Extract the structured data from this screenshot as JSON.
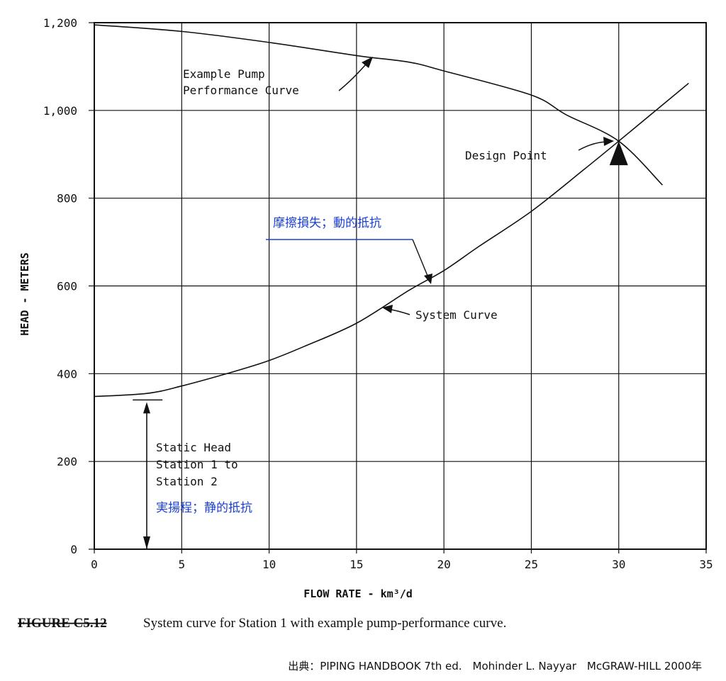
{
  "chart_data": {
    "type": "line",
    "xlabel": "FLOW RATE - km³/d",
    "ylabel": "HEAD - METERS",
    "xlim": [
      0,
      35
    ],
    "ylim": [
      0,
      1200
    ],
    "x_ticks": [
      "0",
      "5",
      "10",
      "15",
      "20",
      "25",
      "30",
      "35"
    ],
    "y_ticks": [
      "0",
      "200",
      "400",
      "600",
      "800",
      "1,000",
      "1,200"
    ],
    "grid": true,
    "series": [
      {
        "name": "Example Pump Performance Curve",
        "x": [
          0,
          5,
          10,
          15,
          18,
          20,
          25,
          27,
          30,
          32.5
        ],
        "y": [
          1195,
          1180,
          1155,
          1125,
          1110,
          1090,
          1035,
          990,
          930,
          830
        ]
      },
      {
        "name": "System Curve",
        "x": [
          0,
          3,
          5,
          8,
          10,
          12,
          15,
          18,
          20,
          22,
          25,
          28,
          30,
          34
        ],
        "y": [
          348,
          355,
          372,
          405,
          430,
          462,
          515,
          590,
          635,
          690,
          770,
          865,
          930,
          1062
        ]
      }
    ],
    "annotations": {
      "pump_curve": [
        "Example Pump",
        "Performance Curve"
      ],
      "system_curve": "System Curve",
      "design_point": "Design Point",
      "friction_loss_jp": "摩擦損失；動的抵抗",
      "static_head": [
        "Static Head",
        "Station 1 to",
        "Station 2"
      ],
      "static_head_jp": "実揚程；静的抵抗"
    },
    "design_point_xy": [
      30,
      930
    ],
    "static_head_value": 345
  },
  "caption": {
    "figure_number": "FIGURE C5.12",
    "text": "System curve for Station 1 with example pump-performance curve."
  },
  "source": "出典：PIPING HANDBOOK 7th ed.　Mohinder L. Nayyar　McGRAW-HILL 2000年"
}
